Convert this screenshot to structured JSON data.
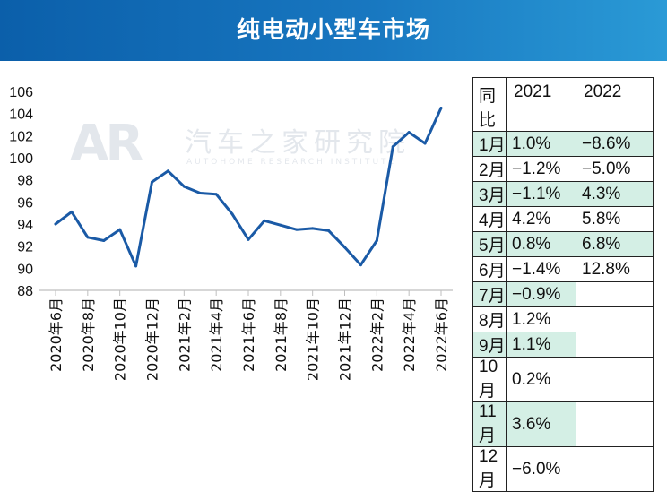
{
  "header": {
    "title": "纯电动小型车市场"
  },
  "watermark": {
    "logo": "AR",
    "cn": "汽车之家研究院",
    "en": "AUTOHOME RESEARCH INSTITUTE"
  },
  "chart_data": {
    "type": "line",
    "x": [
      "2020年6月",
      "2020年7月",
      "2020年8月",
      "2020年9月",
      "2020年10月",
      "2020年11月",
      "2020年12月",
      "2021年1月",
      "2021年2月",
      "2021年3月",
      "2021年4月",
      "2021年5月",
      "2021年6月",
      "2021年7月",
      "2021年8月",
      "2021年9月",
      "2021年10月",
      "2021年11月",
      "2021年12月",
      "2022年1月",
      "2022年2月",
      "2022年3月",
      "2022年4月",
      "2022年5月",
      "2022年6月"
    ],
    "tick_labels": [
      "2020年6月",
      "2020年8月",
      "2020年10月",
      "2020年12月",
      "2021年2月",
      "2021年4月",
      "2021年6月",
      "2021年8月",
      "2021年10月",
      "2021年12月",
      "2022年2月",
      "2022年4月",
      "2022年6月"
    ],
    "values": [
      94.0,
      95.1,
      92.8,
      92.5,
      93.5,
      90.2,
      97.8,
      98.8,
      97.4,
      96.8,
      96.7,
      94.9,
      92.6,
      94.3,
      93.9,
      93.5,
      93.6,
      93.4,
      91.9,
      90.3,
      92.5,
      101.0,
      102.3,
      101.3,
      104.5
    ],
    "yticks": [
      88,
      90,
      92,
      94,
      96,
      98,
      100,
      102,
      104,
      106
    ],
    "ylim": [
      88,
      106
    ],
    "color": "#1a5aa6"
  },
  "table": {
    "headers": [
      "同比",
      "2021",
      "2022"
    ],
    "rows": [
      {
        "month": "1月",
        "y2021": "1.0%",
        "y2022": "−8.6%"
      },
      {
        "month": "2月",
        "y2021": "−1.2%",
        "y2022": "−5.0%"
      },
      {
        "month": "3月",
        "y2021": "−1.1%",
        "y2022": "4.3%"
      },
      {
        "month": "4月",
        "y2021": "4.2%",
        "y2022": "5.8%"
      },
      {
        "month": "5月",
        "y2021": "0.8%",
        "y2022": "6.8%"
      },
      {
        "month": "6月",
        "y2021": "−1.4%",
        "y2022": "12.8%"
      },
      {
        "month": "7月",
        "y2021": "−0.9%",
        "y2022": ""
      },
      {
        "month": "8月",
        "y2021": "1.2%",
        "y2022": ""
      },
      {
        "month": "9月",
        "y2021": "1.1%",
        "y2022": ""
      },
      {
        "month": "10月",
        "y2021": "0.2%",
        "y2022": ""
      },
      {
        "month": "11月",
        "y2021": "3.6%",
        "y2022": ""
      },
      {
        "month": "12月",
        "y2021": "−6.0%",
        "y2022": ""
      }
    ]
  }
}
